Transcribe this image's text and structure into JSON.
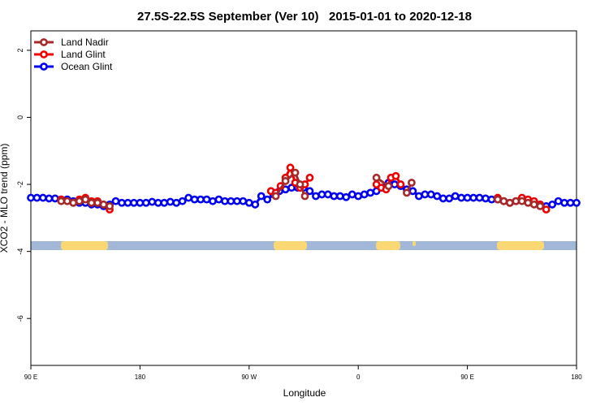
{
  "chart_data": {
    "type": "line",
    "title": "27.5S-22.5S September (Ver 10)   2015-01-01 to 2020-12-18",
    "x_label": "Longitude",
    "y_label": "XCO2 - MLO trend (ppm)",
    "xlim": [
      90,
      540
    ],
    "ylim": [
      -7.4,
      2.58
    ],
    "xticks": [
      {
        "value": 90,
        "label": "90 E"
      },
      180,
      {
        "value": 270,
        "label": "90 W"
      },
      {
        "value": 360,
        "label": "0"
      },
      {
        "value": 450,
        "label": "90 E"
      },
      {
        "value": 540,
        "label": "180"
      }
    ],
    "yticks": [
      2,
      0,
      -2,
      -4,
      -6
    ],
    "legend": "top-left",
    "series": [
      {
        "name": "Land Nadir",
        "color": "#a52a2a",
        "x": [
          115,
          120,
          125,
          130,
          135,
          140,
          145,
          150,
          155,
          292,
          300,
          308,
          312,
          316,
          375,
          385,
          400,
          404,
          475,
          480,
          485,
          490,
          495,
          500,
          505,
          510
        ],
        "values": [
          -2.5,
          -2.5,
          -2.55,
          -2.5,
          -2.45,
          -2.55,
          -2.55,
          -2.6,
          -2.65,
          -2.35,
          -1.9,
          -1.65,
          -2.0,
          -2.35,
          -1.8,
          -2.05,
          -2.25,
          -1.95,
          -2.45,
          -2.5,
          -2.55,
          -2.5,
          -2.5,
          -2.55,
          -2.6,
          -2.65
        ]
      },
      {
        "name": "Land Glint",
        "color": "#ee0000",
        "x": [
          115,
          120,
          125,
          130,
          135,
          140,
          145,
          150,
          155,
          288,
          292,
          296,
          300,
          304,
          308,
          312,
          316,
          320,
          375,
          379,
          383,
          387,
          391,
          395,
          475,
          480,
          485,
          490,
          495,
          500,
          505,
          510,
          515
        ],
        "values": [
          -2.45,
          -2.5,
          -2.55,
          -2.45,
          -2.4,
          -2.5,
          -2.5,
          -2.6,
          -2.75,
          -2.2,
          -2.25,
          -2.05,
          -1.8,
          -1.5,
          -1.95,
          -2.1,
          -2.0,
          -1.8,
          -2.0,
          -2.1,
          -2.15,
          -1.8,
          -1.75,
          -2.0,
          -2.4,
          -2.5,
          -2.55,
          -2.5,
          -2.4,
          -2.45,
          -2.5,
          -2.6,
          -2.75
        ]
      },
      {
        "name": "Ocean Glint",
        "color": "#0000ee",
        "x": [
          90,
          95,
          100,
          105,
          110,
          115,
          120,
          125,
          130,
          135,
          140,
          145,
          150,
          155,
          160,
          165,
          170,
          175,
          180,
          185,
          190,
          195,
          200,
          205,
          210,
          215,
          220,
          225,
          230,
          235,
          240,
          245,
          250,
          255,
          260,
          265,
          270,
          275,
          280,
          285,
          290,
          295,
          300,
          305,
          310,
          315,
          320,
          325,
          330,
          335,
          340,
          345,
          350,
          355,
          360,
          365,
          370,
          375,
          380,
          385,
          390,
          395,
          400,
          405,
          410,
          415,
          420,
          425,
          430,
          435,
          440,
          445,
          450,
          455,
          460,
          465,
          470,
          475,
          480,
          485,
          490,
          495,
          500,
          505,
          510,
          515,
          520,
          525,
          530,
          535,
          540
        ],
        "values": [
          -2.4,
          -2.4,
          -2.4,
          -2.42,
          -2.42,
          -2.45,
          -2.45,
          -2.5,
          -2.55,
          -2.55,
          -2.6,
          -2.6,
          -2.65,
          -2.6,
          -2.5,
          -2.55,
          -2.55,
          -2.55,
          -2.55,
          -2.55,
          -2.52,
          -2.55,
          -2.55,
          -2.52,
          -2.55,
          -2.5,
          -2.4,
          -2.45,
          -2.45,
          -2.45,
          -2.5,
          -2.45,
          -2.5,
          -2.5,
          -2.5,
          -2.5,
          -2.55,
          -2.6,
          -2.35,
          -2.45,
          -2.3,
          -2.2,
          -2.15,
          -2.1,
          -2.1,
          -2.1,
          -2.2,
          -2.35,
          -2.3,
          -2.3,
          -2.35,
          -2.35,
          -2.38,
          -2.3,
          -2.35,
          -2.3,
          -2.25,
          -2.2,
          -2.1,
          -1.95,
          -2.0,
          -2.05,
          -2.15,
          -2.2,
          -2.35,
          -2.3,
          -2.3,
          -2.35,
          -2.42,
          -2.42,
          -2.35,
          -2.4,
          -2.4,
          -2.4,
          -2.4,
          -2.42,
          -2.45,
          -2.45,
          -2.5,
          -2.55,
          -2.5,
          -2.45,
          -2.5,
          -2.55,
          -2.6,
          -2.65,
          -2.6,
          -2.5,
          -2.55,
          -2.55,
          -2.55
        ]
      }
    ]
  }
}
